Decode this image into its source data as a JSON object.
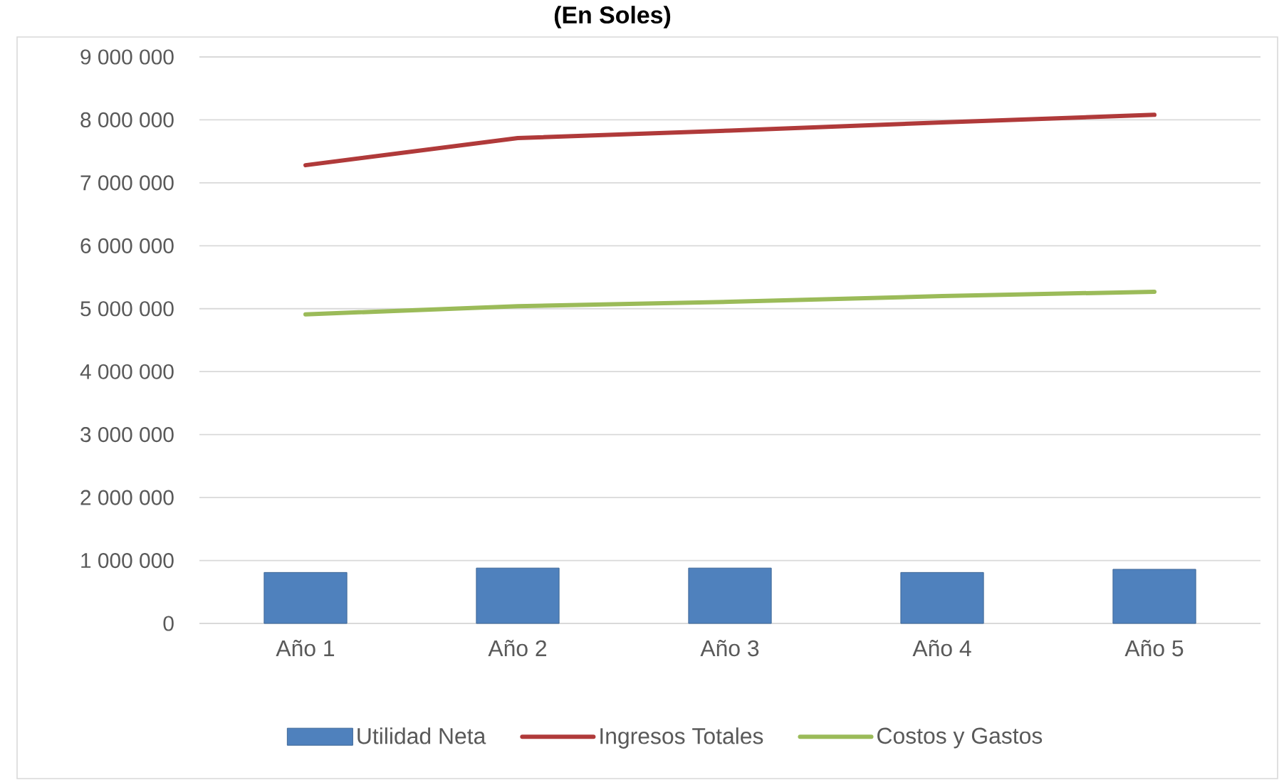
{
  "chart_data": {
    "type": "bar",
    "title": "(En Soles)",
    "categories": [
      "Año 1",
      "Año 2",
      "Año 3",
      "Año 4",
      "Año 5"
    ],
    "series": [
      {
        "name": "Utilidad Neta",
        "color": "#4f81bd",
        "values": [
          810000,
          880000,
          880000,
          810000,
          860000
        ]
      },
      {
        "name": "Ingresos Totales",
        "type": "line",
        "color": "#b03a3a",
        "values": [
          7280000,
          7710000,
          7830000,
          7960000,
          8080000
        ]
      },
      {
        "name": "Costos y Gastos",
        "type": "line",
        "color": "#9bbb59",
        "values": [
          4910000,
          5040000,
          5110000,
          5200000,
          5270000
        ]
      }
    ],
    "ylim": [
      0,
      9000000
    ],
    "yticks": [
      {
        "value": 0,
        "label": "0"
      },
      {
        "value": 1000000,
        "label": "1 000 000"
      },
      {
        "value": 2000000,
        "label": "2 000 000"
      },
      {
        "value": 3000000,
        "label": "3 000 000"
      },
      {
        "value": 4000000,
        "label": "4 000 000"
      },
      {
        "value": 5000000,
        "label": "5 000 000"
      },
      {
        "value": 6000000,
        "label": "6 000 000"
      },
      {
        "value": 7000000,
        "label": "7 000 000"
      },
      {
        "value": 8000000,
        "label": "8 000 000"
      },
      {
        "value": 9000000,
        "label": "9 000 000"
      }
    ],
    "grid": "y",
    "legend": "bottom",
    "line_style": "solid"
  }
}
